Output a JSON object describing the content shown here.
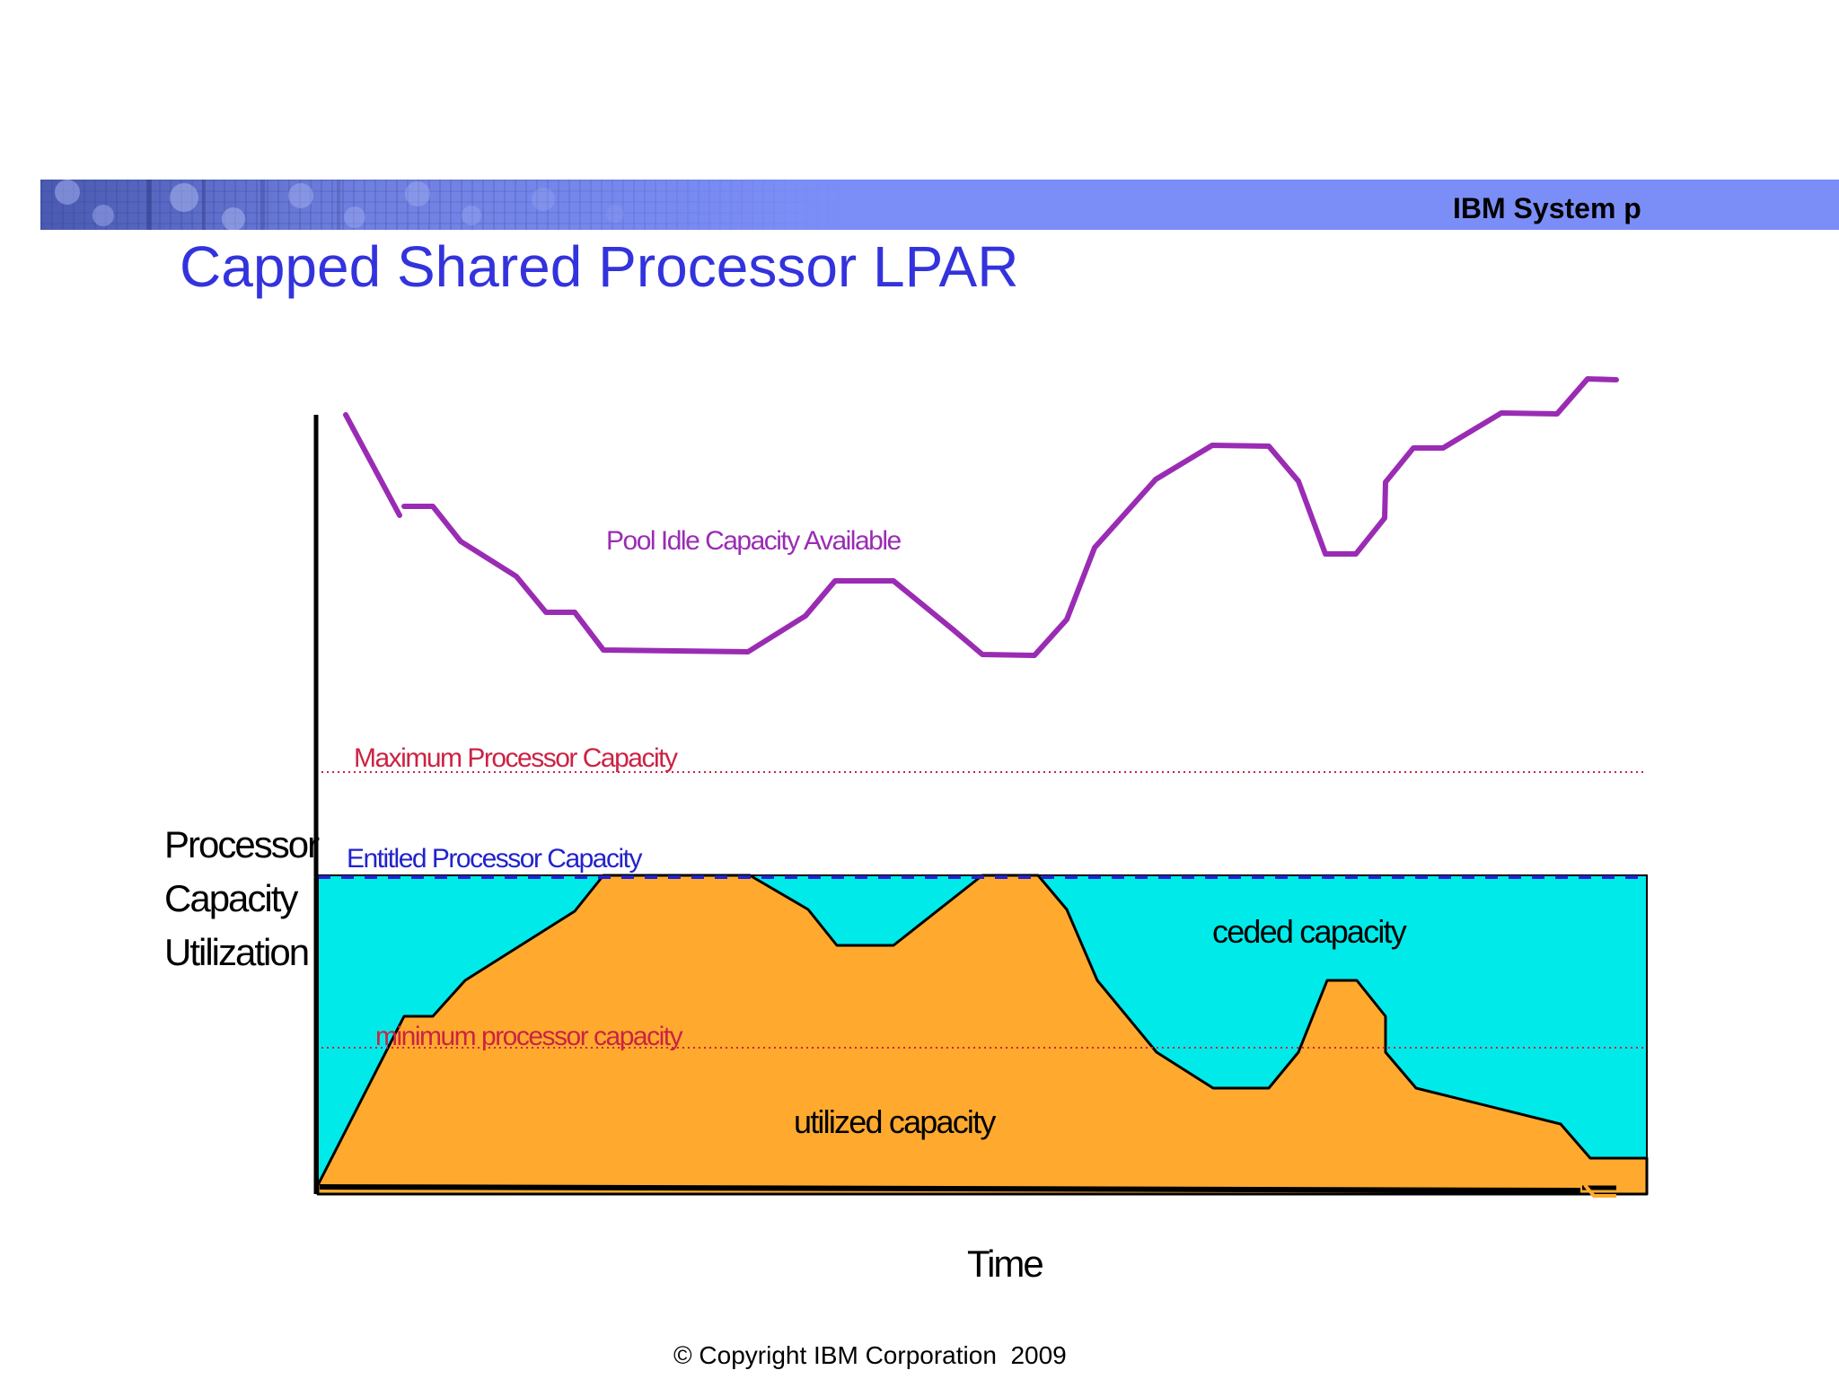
{
  "header": {
    "brand": "IBM System p",
    "title": "Capped Shared Processor LPAR"
  },
  "diagram": {
    "y_axis_label_lines": [
      "Processor",
      "Capacity",
      "Utilization"
    ],
    "x_axis_label": "Time",
    "labels": {
      "pool_idle": "Pool Idle Capacity Available",
      "maximum": "Maximum Processor Capacity",
      "entitled": "Entitled Processor Capacity",
      "minimum": "minimum processor capacity",
      "ceded": "ceded capacity",
      "utilized": "utilized capacity"
    },
    "colors": {
      "pool_idle_line": "#9a2cb4",
      "ceded_fill": "#00eaea",
      "utilized_fill": "#ffaa2e",
      "maximum_line": "#cc2244",
      "minimum_line": "#cc2244",
      "entitled_line": "#2222cc",
      "banner": "#7b8ef7"
    }
  },
  "footer": {
    "copyright": "© Copyright IBM Corporation  2009"
  }
}
